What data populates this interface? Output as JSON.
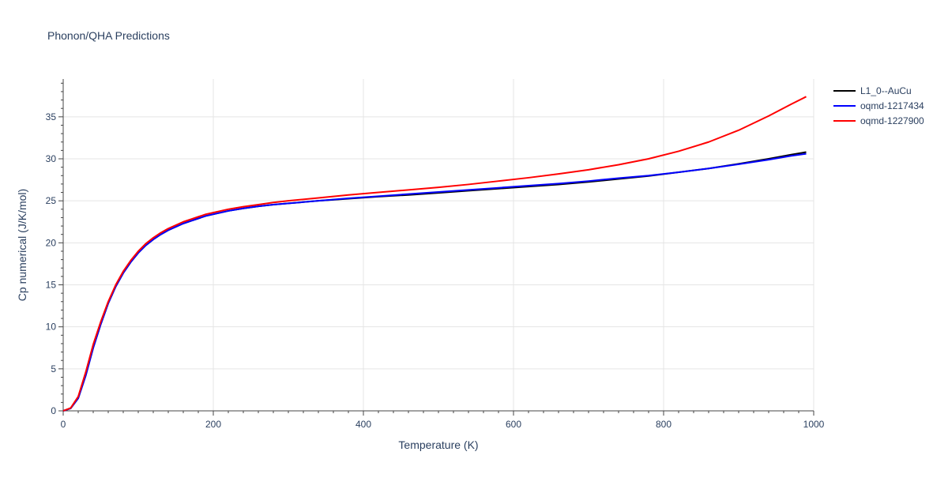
{
  "chart_data": {
    "type": "line",
    "title": "Phonon/QHA Predictions",
    "xlabel": "Temperature (K)",
    "ylabel": "Cp numerical (J/K/mol)",
    "xlim": [
      0,
      1000
    ],
    "ylim": [
      0,
      39.5
    ],
    "xticks": [
      0,
      200,
      400,
      600,
      800,
      1000
    ],
    "yticks": [
      0,
      5,
      10,
      15,
      20,
      25,
      30,
      35
    ],
    "grid": true,
    "legend_position": "top-right",
    "series": [
      {
        "name": "L1_0--AuCu",
        "color": "#000000",
        "x": [
          0,
          10,
          20,
          30,
          40,
          50,
          60,
          70,
          80,
          90,
          100,
          110,
          120,
          130,
          140,
          150,
          160,
          170,
          180,
          190,
          200,
          220,
          240,
          260,
          280,
          300,
          340,
          380,
          420,
          460,
          500,
          540,
          580,
          620,
          660,
          700,
          740,
          780,
          820,
          860,
          900,
          940,
          970,
          990
        ],
        "y": [
          0,
          0.3,
          1.5,
          4.2,
          7.5,
          10.3,
          12.8,
          14.8,
          16.4,
          17.7,
          18.8,
          19.7,
          20.4,
          21.0,
          21.5,
          21.9,
          22.3,
          22.6,
          22.9,
          23.2,
          23.4,
          23.8,
          24.1,
          24.35,
          24.55,
          24.7,
          25.0,
          25.25,
          25.5,
          25.7,
          25.95,
          26.2,
          26.45,
          26.7,
          26.95,
          27.25,
          27.6,
          27.95,
          28.4,
          28.85,
          29.4,
          30.0,
          30.5,
          30.8
        ]
      },
      {
        "name": "oqmd-1217434",
        "color": "#0000ff",
        "x": [
          0,
          10,
          20,
          30,
          40,
          50,
          60,
          70,
          80,
          90,
          100,
          110,
          120,
          130,
          140,
          150,
          160,
          170,
          180,
          190,
          200,
          220,
          240,
          260,
          280,
          300,
          340,
          380,
          420,
          460,
          500,
          540,
          580,
          620,
          660,
          700,
          740,
          780,
          820,
          860,
          900,
          940,
          970,
          990
        ],
        "y": [
          0,
          0.3,
          1.5,
          4.2,
          7.5,
          10.3,
          12.8,
          14.8,
          16.4,
          17.7,
          18.8,
          19.7,
          20.4,
          21.0,
          21.5,
          21.9,
          22.3,
          22.6,
          22.9,
          23.2,
          23.4,
          23.8,
          24.1,
          24.35,
          24.55,
          24.7,
          25.0,
          25.3,
          25.55,
          25.8,
          26.05,
          26.3,
          26.55,
          26.8,
          27.05,
          27.35,
          27.7,
          28.0,
          28.4,
          28.85,
          29.35,
          29.9,
          30.35,
          30.6
        ]
      },
      {
        "name": "oqmd-1227900",
        "color": "#ff0000",
        "x": [
          0,
          10,
          20,
          30,
          40,
          50,
          60,
          70,
          80,
          90,
          100,
          110,
          120,
          130,
          140,
          150,
          160,
          170,
          180,
          190,
          200,
          220,
          240,
          260,
          280,
          300,
          340,
          380,
          420,
          460,
          500,
          540,
          580,
          620,
          660,
          700,
          740,
          780,
          820,
          860,
          900,
          940,
          970,
          990
        ],
        "y": [
          0,
          0.35,
          1.7,
          4.6,
          7.9,
          10.6,
          13.0,
          15.0,
          16.6,
          17.9,
          19.0,
          19.9,
          20.6,
          21.2,
          21.7,
          22.1,
          22.5,
          22.8,
          23.1,
          23.4,
          23.6,
          24.0,
          24.3,
          24.55,
          24.8,
          25.0,
          25.35,
          25.7,
          26.0,
          26.3,
          26.6,
          26.95,
          27.35,
          27.75,
          28.2,
          28.7,
          29.3,
          30.0,
          30.9,
          32.0,
          33.4,
          35.1,
          36.5,
          37.4
        ]
      }
    ]
  }
}
